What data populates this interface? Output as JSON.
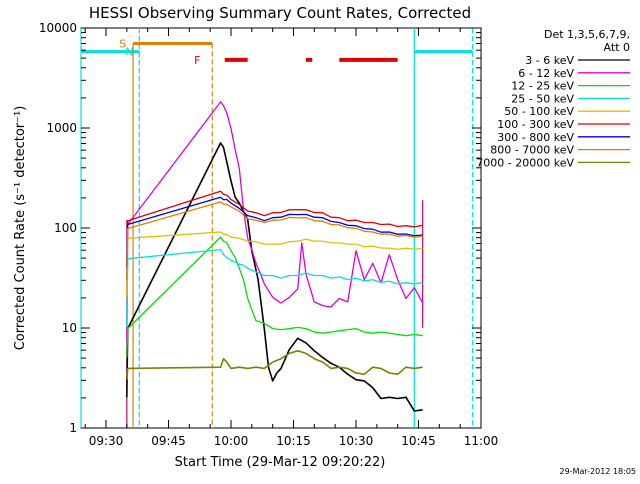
{
  "chart_data": {
    "type": "line",
    "title": "HESSI Observing Summary Count Rates, Corrected",
    "xlabel": "Start Time (29-Mar-12 09:20:22)",
    "ylabel": "Corrected Count Rate (s⁻¹ detector⁻¹)",
    "yscale": "log",
    "ylim": [
      1,
      10000
    ],
    "xlim": [
      24,
      120
    ],
    "x_unit": "minutes after 09:00",
    "x_ticks": [
      {
        "x": 30,
        "label": "09:30"
      },
      {
        "x": 45,
        "label": "09:45"
      },
      {
        "x": 60,
        "label": "10:00"
      },
      {
        "x": 75,
        "label": "10:15"
      },
      {
        "x": 90,
        "label": "10:30"
      },
      {
        "x": 105,
        "label": "10:45"
      },
      {
        "x": 120,
        "label": "11:00"
      }
    ],
    "y_ticks": [
      {
        "y": 1,
        "label": "1"
      },
      {
        "y": 10,
        "label": "10"
      },
      {
        "y": 100,
        "label": "100"
      },
      {
        "y": 1000,
        "label": "1000"
      },
      {
        "y": 10000,
        "label": "10000"
      }
    ],
    "legend": {
      "title_line1": "Det 1,3,5,6,7,9,",
      "title_line2": "Att 0",
      "placement": "right"
    },
    "series": [
      {
        "name": "3 - 6 keV",
        "color": "#000000",
        "x": [
          35.0,
          35.2,
          57.5,
          58.2,
          59.0,
          60.0,
          61.0,
          62.0,
          64.0,
          65.0,
          66.5,
          68.0,
          69.0,
          70.0,
          71.0,
          72.0,
          74.0,
          76.0,
          78.0,
          80.0,
          82.0,
          84.0,
          86.0,
          88.0,
          90.0,
          92.0,
          94.0,
          96.0,
          98.0,
          100.0,
          102.0,
          104.0,
          106.0
        ],
        "y": [
          2,
          10,
          700,
          650,
          450,
          300,
          200,
          180,
          120,
          60,
          30,
          10,
          4,
          3,
          3.5,
          4,
          6,
          8,
          7,
          6,
          5,
          4.5,
          4,
          3.5,
          3,
          3,
          2.5,
          2,
          2,
          2,
          2,
          1.5,
          1.5
        ]
      },
      {
        "name": "6 - 12 keV",
        "color": "#e000e0",
        "x": [
          35.0,
          35.2,
          57.5,
          58.2,
          59.0,
          60.0,
          61.0,
          62.0,
          63.0,
          64.0,
          65.0,
          66.0,
          67.0,
          68.0,
          70.0,
          72.0,
          74.0,
          76.0,
          77.0,
          78.0,
          80.0,
          82.0,
          84.0,
          86.0,
          88.0,
          90.0,
          92.0,
          94.0,
          96.0,
          98.0,
          100.0,
          102.0,
          104.0,
          106.0
        ],
        "y": [
          5,
          110,
          1800,
          1700,
          1400,
          1000,
          600,
          400,
          150,
          80,
          60,
          45,
          35,
          28,
          20,
          18,
          20,
          25,
          70,
          35,
          18,
          17,
          16,
          20,
          18,
          60,
          30,
          45,
          28,
          55,
          30,
          20,
          25,
          18
        ]
      },
      {
        "name": "12 - 25 keV",
        "color": "#00e000",
        "x": [
          35.0,
          35.2,
          57.5,
          58.2,
          59.0,
          60.0,
          61.0,
          62.0,
          63.0,
          64.0,
          65.0,
          66.0,
          68.0,
          70.0,
          72.0,
          74.0,
          76.0,
          78.0,
          80.0,
          82.0,
          84.0,
          86.0,
          88.0,
          90.0,
          92.0,
          94.0,
          96.0,
          98.0,
          100.0,
          102.0,
          104.0,
          106.0
        ],
        "y": [
          5,
          10,
          80,
          75,
          70,
          60,
          50,
          40,
          30,
          20,
          15,
          12,
          11,
          10,
          9.5,
          10,
          10,
          10,
          9,
          9,
          9,
          9.5,
          9.5,
          10,
          9,
          9,
          9,
          9,
          8.5,
          8.5,
          8.5,
          8.5
        ]
      },
      {
        "name": "25 - 50 keV",
        "color": "#00e0e0",
        "x": [
          35.0,
          35.2,
          57.5,
          58.2,
          59.0,
          60.0,
          61.0,
          62.0,
          63.0,
          64.0,
          66.0,
          68.0,
          70.0,
          72.0,
          74.0,
          76.0,
          78.0,
          80.0,
          82.0,
          84.0,
          86.0,
          88.0,
          90.0,
          92.0,
          94.0,
          96.0,
          98.0,
          100.0,
          102.0,
          104.0,
          106.0
        ],
        "y": [
          10,
          50,
          60,
          55,
          50,
          48,
          45,
          44,
          42,
          40,
          36,
          34,
          33,
          32,
          33,
          34,
          35,
          34,
          33,
          32,
          32,
          31,
          31,
          30,
          30,
          29,
          29,
          28,
          28,
          28,
          28
        ]
      },
      {
        "name": "50 - 100 keV",
        "color": "#e0c000",
        "x": [
          35.0,
          35.2,
          57.5,
          58.2,
          59.0,
          60.0,
          62.0,
          64.0,
          66.0,
          68.0,
          70.0,
          72.0,
          74.0,
          76.0,
          78.0,
          80.0,
          82.0,
          84.0,
          86.0,
          88.0,
          90.0,
          92.0,
          94.0,
          96.0,
          98.0,
          100.0,
          102.0,
          104.0,
          106.0
        ],
        "y": [
          20,
          80,
          90,
          88,
          85,
          82,
          78,
          75,
          72,
          70,
          68,
          70,
          72,
          75,
          76,
          75,
          73,
          72,
          70,
          70,
          68,
          66,
          65,
          64,
          62,
          62,
          62,
          62,
          62
        ]
      },
      {
        "name": "100 - 300 keV",
        "color": "#e00000",
        "x": [
          35.0,
          35.2,
          57.5,
          58.2,
          59.0,
          60.0,
          62.0,
          64.0,
          66.0,
          68.0,
          70.0,
          72.0,
          74.0,
          76.0,
          78.0,
          80.0,
          82.0,
          84.0,
          86.0,
          88.0,
          90.0,
          92.0,
          94.0,
          96.0,
          98.0,
          100.0,
          102.0,
          104.0,
          106.0
        ],
        "y": [
          40,
          120,
          230,
          220,
          210,
          195,
          170,
          150,
          140,
          135,
          140,
          145,
          150,
          155,
          150,
          145,
          140,
          130,
          125,
          120,
          118,
          115,
          112,
          110,
          108,
          105,
          104,
          104,
          105
        ]
      },
      {
        "name": "300 - 800 keV",
        "color": "#0000e0",
        "x": [
          35.0,
          35.2,
          57.5,
          58.2,
          59.0,
          60.0,
          62.0,
          64.0,
          66.0,
          68.0,
          70.0,
          72.0,
          74.0,
          76.0,
          78.0,
          80.0,
          82.0,
          84.0,
          86.0,
          88.0,
          90.0,
          92.0,
          94.0,
          96.0,
          98.0,
          100.0,
          102.0,
          104.0,
          106.0
        ],
        "y": [
          40,
          110,
          200,
          195,
          190,
          180,
          155,
          135,
          125,
          120,
          125,
          130,
          135,
          138,
          135,
          130,
          125,
          118,
          112,
          108,
          104,
          100,
          96,
          92,
          90,
          88,
          86,
          85,
          84
        ]
      },
      {
        "name": "800 - 7000 keV",
        "color": "#e08000",
        "x": [
          35.0,
          35.2,
          57.5,
          58.2,
          59.0,
          60.0,
          62.0,
          64.0,
          66.0,
          68.0,
          70.0,
          72.0,
          74.0,
          76.0,
          78.0,
          80.0,
          82.0,
          84.0,
          86.0,
          88.0,
          90.0,
          92.0,
          94.0,
          96.0,
          98.0,
          100.0,
          102.0,
          104.0,
          106.0
        ],
        "y": [
          30,
          100,
          180,
          175,
          170,
          165,
          145,
          125,
          118,
          115,
          118,
          122,
          126,
          128,
          125,
          120,
          115,
          110,
          106,
          102,
          98,
          94,
          90,
          88,
          86,
          84,
          83,
          82,
          82
        ]
      },
      {
        "name": "7000 - 20000 keV",
        "color": "#808000",
        "x": [
          35.0,
          35.2,
          57.5,
          58.2,
          59.0,
          60.0,
          62.0,
          64.0,
          66.0,
          68.0,
          70.0,
          72.0,
          74.0,
          76.0,
          78.0,
          80.0,
          82.0,
          84.0,
          86.0,
          88.0,
          90.0,
          92.0,
          94.0,
          96.0,
          98.0,
          100.0,
          102.0,
          104.0,
          106.0
        ],
        "y": [
          3,
          4,
          4,
          5,
          4.5,
          4,
          4,
          4,
          4,
          4,
          4.5,
          5,
          5.5,
          6,
          5.5,
          5,
          4.5,
          4,
          4,
          4,
          3.5,
          3.5,
          4,
          4,
          3.5,
          3.5,
          4,
          4,
          4
        ]
      }
    ],
    "annotations": {
      "markers": [
        {
          "label": "S",
          "x": 36.5,
          "y": 7000,
          "color": "#e08000"
        },
        {
          "label": "N",
          "x": 38.0,
          "y": 5800,
          "color": "#00e0e0"
        },
        {
          "label": "F",
          "x": 54.5,
          "y": 4800,
          "color": "#e00000"
        }
      ],
      "saa_segments": [
        [
          24,
          38.0,
          5800
        ],
        [
          104.0,
          118.0,
          5800
        ]
      ],
      "saa_color": "#00e0e0",
      "saa_lines_solid": [
        24.0,
        104.0
      ],
      "saa_lines_dashed": [
        38.0,
        118.0
      ],
      "flag_segment": {
        "x": [
          36.5,
          55.5
        ],
        "y": 7000,
        "color": "#e08000"
      },
      "flag_dashed": [
        55.5
      ],
      "flag_lines_solid": [
        36.5
      ],
      "flare_segments": [
        [
          58.5,
          64.0,
          4800
        ],
        [
          78.0,
          79.5,
          4800
        ],
        [
          86.0,
          100.0,
          4800
        ]
      ],
      "flare_color": "#e00000",
      "misc_spikes": [
        [
          35.0,
          1.0,
          120
        ],
        [
          106.0,
          10.0,
          190
        ]
      ]
    },
    "footer": "29-Mar-2012 18:05"
  }
}
